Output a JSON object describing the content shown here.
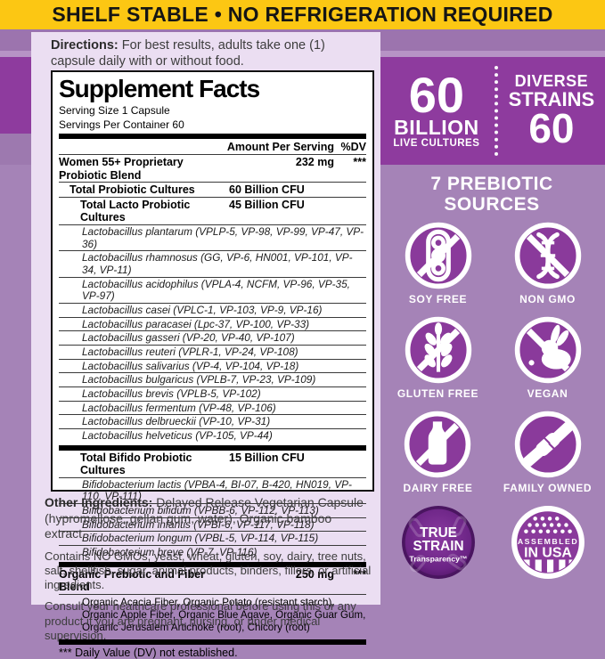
{
  "banner": {
    "text": "SHELF STABLE • NO REFRIGERATION REQUIRED",
    "bg_color": "#fcc713"
  },
  "directions": {
    "label": "Directions:",
    "text": " For best results, adults take one (1) capsule daily with or without food."
  },
  "supplement_facts": {
    "title": "Supplement Facts",
    "serving_size": "Serving Size 1 Capsule",
    "servings_per_container": "Servings Per Container 60",
    "col_amount": "Amount Per Serving",
    "col_dv": "%DV",
    "rows": [
      {
        "type": "blend",
        "name": "Women 55+ Proprietary Probiotic Blend",
        "amount": "232 mg",
        "dv": "***"
      },
      {
        "type": "total",
        "name": "Total Probiotic Cultures",
        "amount": "60 Billion CFU",
        "dv": ""
      },
      {
        "type": "subtotal",
        "name": "Total Lacto Probiotic Cultures",
        "amount": "45 Billion CFU",
        "dv": ""
      },
      {
        "type": "strain",
        "name": "Lactobacillus plantarum (VPLP-5, VP-98, VP-99, VP-47, VP-36)"
      },
      {
        "type": "strain",
        "name": "Lactobacillus rhamnosus (GG, VP-6, HN001, VP-101, VP-34, VP-11)"
      },
      {
        "type": "strain",
        "name": "Lactobacillus acidophilus (VPLA-4, NCFM, VP-96, VP-35, VP-97)"
      },
      {
        "type": "strain",
        "name": "Lactobacillus casei (VPLC-1, VP-103, VP-9, VP-16)"
      },
      {
        "type": "strain",
        "name": "Lactobacillus paracasei (Lpc-37, VP-100, VP-33)"
      },
      {
        "type": "strain",
        "name": "Lactobacillus gasseri (VP-20, VP-40, VP-107)"
      },
      {
        "type": "strain",
        "name": "Lactobacillus reuteri (VPLR-1, VP-24, VP-108)"
      },
      {
        "type": "strain",
        "name": "Lactobacillus salivarius (VP-4, VP-104, VP-18)"
      },
      {
        "type": "strain",
        "name": "Lactobacillus bulgaricus (VPLB-7, VP-23, VP-109)"
      },
      {
        "type": "strain",
        "name": "Lactobacillus brevis (VPLB-5, VP-102)"
      },
      {
        "type": "strain",
        "name": "Lactobacillus fermentum (VP-48, VP-106)"
      },
      {
        "type": "strain",
        "name": "Lactobacillus delbrueckii (VP-10, VP-31)"
      },
      {
        "type": "strain",
        "name": "Lactobacillus helveticus (VP-105, VP-44)"
      },
      {
        "type": "subtotal",
        "thick": true,
        "name": "Total Bifido Probiotic Cultures",
        "amount": "15 Billion CFU",
        "dv": ""
      },
      {
        "type": "strain",
        "name": "Bifidobacterium lactis (VPBA-4, BI-07, B-420, HN019, VP-110, VP-111)"
      },
      {
        "type": "strain",
        "name": "Bifidobacterium bifidum (VPBB-6, VP-112, VP-113)"
      },
      {
        "type": "strain",
        "name": "Bifidobacterium infantis (VPBI-6, VP-117, VP-118)"
      },
      {
        "type": "strain",
        "name": "Bifidobacterium longum (VPBL-5, VP-114, VP-115)"
      },
      {
        "type": "strain",
        "name": "Bifidobacterium breve (VP-7, VP-116)"
      },
      {
        "type": "blend",
        "thick": true,
        "name": "Organic Prebiotic and Fiber Blend",
        "amount": "250 mg",
        "dv": "***"
      },
      {
        "type": "desc",
        "name": "Organic Acacia Fiber, Organic Potato (resistant starch), Organic Apple Fiber, Organic Blue Agave, Organic Guar Gum, Organic Jerusalem Artichoke (root), Chicory (root)"
      }
    ],
    "footnote": "*** Daily Value (DV) not established."
  },
  "other_ingredients": {
    "label": "Other Ingredients:",
    "text": " Delayed Release Vegetarian Capsule (hypromellose, gellan gum, water), Organic bamboo extract."
  },
  "contains_note": "Contains NO GMOs, yeast, wheat, gluten, soy, dairy, tree nuts, salt, shellfish, sugar, animal products, binders, fillers, or artificial ingredients.",
  "consult_note": "Consult your healthcare professional before using this or any product if you are pregnant, nursing, or under medical supervision.",
  "highlights": {
    "count": "60",
    "billion": "BILLION",
    "live_cultures": "LIVE CULTURES",
    "diverse": "DIVERSE",
    "strains": "STRAINS",
    "strain_count": "60"
  },
  "prebiotic_heading": {
    "line1": "7 PREBIOTIC",
    "line2": "SOURCES"
  },
  "badges": [
    {
      "label": "SOY FREE",
      "icon": "soy-free-icon"
    },
    {
      "label": "NON GMO",
      "icon": "non-gmo-icon"
    },
    {
      "label": "GLUTEN FREE",
      "icon": "gluten-free-icon"
    },
    {
      "label": "VEGAN",
      "icon": "vegan-icon"
    },
    {
      "label": "DAIRY FREE",
      "icon": "dairy-free-icon"
    },
    {
      "label": "FAMILY OWNED",
      "icon": "family-owned-icon"
    }
  ],
  "true_strain": {
    "line1": "TRUE",
    "line2": "STRAIN",
    "line3": "Transparency™"
  },
  "assembled_usa": {
    "line1": "ASSEMBLED",
    "line2": "IN USA"
  },
  "colors": {
    "banner_yellow": "#fcc713",
    "saturated_purple": "#8e3b9e",
    "muted_purple": "#a583b7",
    "badge_circle": "#8a3a9b",
    "panel_lavender": "#ebdef2"
  }
}
